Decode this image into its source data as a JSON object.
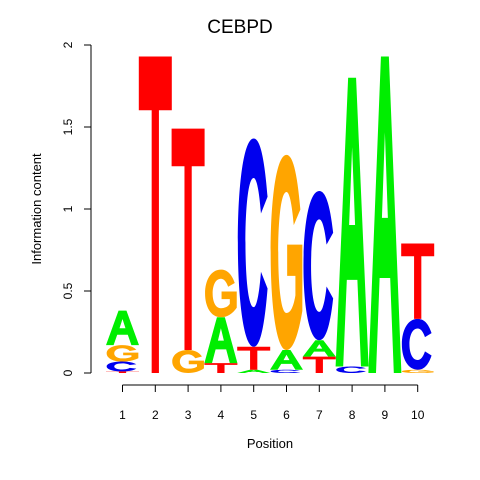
{
  "chart_data": {
    "type": "sequence-logo",
    "title": "CEBPD",
    "xlabel": "Position",
    "ylabel": "Information content",
    "ylim": [
      0,
      2
    ],
    "yticks": [
      "0",
      "0.5",
      "1",
      "1.5",
      "2"
    ],
    "positions": [
      "1",
      "2",
      "3",
      "4",
      "5",
      "6",
      "7",
      "8",
      "9",
      "10"
    ],
    "colors": {
      "A": "#00ee00",
      "C": "#0000ee",
      "G": "#ffa500",
      "T": "#ff0000"
    },
    "stacks": [
      [
        {
          "letter": "T",
          "height": 0.01
        },
        {
          "letter": "C",
          "height": 0.06
        },
        {
          "letter": "G",
          "height": 0.1
        },
        {
          "letter": "A",
          "height": 0.21
        }
      ],
      [
        {
          "letter": "T",
          "height": 1.93
        }
      ],
      [
        {
          "letter": "G",
          "height": 0.14
        },
        {
          "letter": "T",
          "height": 1.35
        }
      ],
      [
        {
          "letter": "T",
          "height": 0.06
        },
        {
          "letter": "A",
          "height": 0.28
        },
        {
          "letter": "G",
          "height": 0.29
        }
      ],
      [
        {
          "letter": "A",
          "height": 0.02
        },
        {
          "letter": "T",
          "height": 0.14
        },
        {
          "letter": "C",
          "height": 1.27
        }
      ],
      [
        {
          "letter": "C",
          "height": 0.02
        },
        {
          "letter": "A",
          "height": 0.12
        },
        {
          "letter": "G",
          "height": 1.19
        }
      ],
      [
        {
          "letter": "T",
          "height": 0.1
        },
        {
          "letter": "A",
          "height": 0.1
        },
        {
          "letter": "C",
          "height": 0.91
        }
      ],
      [
        {
          "letter": "C",
          "height": 0.04
        },
        {
          "letter": "A",
          "height": 1.76
        }
      ],
      [
        {
          "letter": "A",
          "height": 1.93
        }
      ],
      [
        {
          "letter": "G",
          "height": 0.02
        },
        {
          "letter": "C",
          "height": 0.31
        },
        {
          "letter": "T",
          "height": 0.46
        }
      ]
    ]
  }
}
